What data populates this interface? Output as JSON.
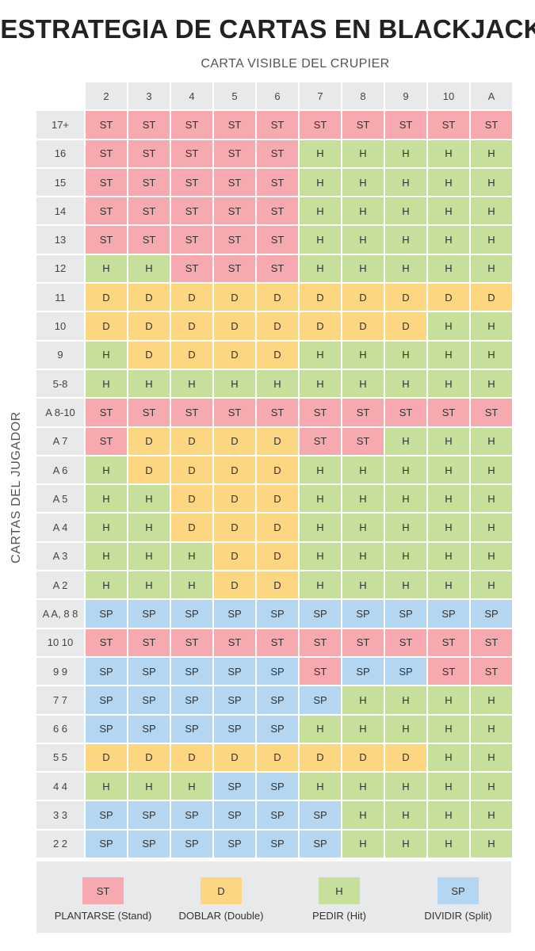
{
  "title": "ESTRATEGIA DE CARTAS EN BLACKJACK",
  "dealer_axis_label": "CARTA VISIBLE DEL CRUPIER",
  "player_axis_label": "CARTAS DEL JUGADOR",
  "dealer_cards": [
    "2",
    "3",
    "4",
    "5",
    "6",
    "7",
    "8",
    "9",
    "10",
    "A"
  ],
  "rows": [
    {
      "label": "17+",
      "actions": [
        "ST",
        "ST",
        "ST",
        "ST",
        "ST",
        "ST",
        "ST",
        "ST",
        "ST",
        "ST"
      ]
    },
    {
      "label": "16",
      "actions": [
        "ST",
        "ST",
        "ST",
        "ST",
        "ST",
        "H",
        "H",
        "H",
        "H",
        "H"
      ]
    },
    {
      "label": "15",
      "actions": [
        "ST",
        "ST",
        "ST",
        "ST",
        "ST",
        "H",
        "H",
        "H",
        "H",
        "H"
      ]
    },
    {
      "label": "14",
      "actions": [
        "ST",
        "ST",
        "ST",
        "ST",
        "ST",
        "H",
        "H",
        "H",
        "H",
        "H"
      ]
    },
    {
      "label": "13",
      "actions": [
        "ST",
        "ST",
        "ST",
        "ST",
        "ST",
        "H",
        "H",
        "H",
        "H",
        "H"
      ]
    },
    {
      "label": "12",
      "actions": [
        "H",
        "H",
        "ST",
        "ST",
        "ST",
        "H",
        "H",
        "H",
        "H",
        "H"
      ]
    },
    {
      "label": "11",
      "actions": [
        "D",
        "D",
        "D",
        "D",
        "D",
        "D",
        "D",
        "D",
        "D",
        "D"
      ]
    },
    {
      "label": "10",
      "actions": [
        "D",
        "D",
        "D",
        "D",
        "D",
        "D",
        "D",
        "D",
        "H",
        "H"
      ]
    },
    {
      "label": "9",
      "actions": [
        "H",
        "D",
        "D",
        "D",
        "D",
        "H",
        "H",
        "H",
        "H",
        "H"
      ]
    },
    {
      "label": "5-8",
      "actions": [
        "H",
        "H",
        "H",
        "H",
        "H",
        "H",
        "H",
        "H",
        "H",
        "H"
      ]
    },
    {
      "label": "A 8-10",
      "actions": [
        "ST",
        "ST",
        "ST",
        "ST",
        "ST",
        "ST",
        "ST",
        "ST",
        "ST",
        "ST"
      ]
    },
    {
      "label": "A 7",
      "actions": [
        "ST",
        "D",
        "D",
        "D",
        "D",
        "ST",
        "ST",
        "H",
        "H",
        "H"
      ]
    },
    {
      "label": "A 6",
      "actions": [
        "H",
        "D",
        "D",
        "D",
        "D",
        "H",
        "H",
        "H",
        "H",
        "H"
      ]
    },
    {
      "label": "A 5",
      "actions": [
        "H",
        "H",
        "D",
        "D",
        "D",
        "H",
        "H",
        "H",
        "H",
        "H"
      ]
    },
    {
      "label": "A 4",
      "actions": [
        "H",
        "H",
        "D",
        "D",
        "D",
        "H",
        "H",
        "H",
        "H",
        "H"
      ]
    },
    {
      "label": "A 3",
      "actions": [
        "H",
        "H",
        "H",
        "D",
        "D",
        "H",
        "H",
        "H",
        "H",
        "H"
      ]
    },
    {
      "label": "A 2",
      "actions": [
        "H",
        "H",
        "H",
        "D",
        "D",
        "H",
        "H",
        "H",
        "H",
        "H"
      ]
    },
    {
      "label": "A A, 8 8",
      "actions": [
        "SP",
        "SP",
        "SP",
        "SP",
        "SP",
        "SP",
        "SP",
        "SP",
        "SP",
        "SP"
      ]
    },
    {
      "label": "10 10",
      "actions": [
        "ST",
        "ST",
        "ST",
        "ST",
        "ST",
        "ST",
        "ST",
        "ST",
        "ST",
        "ST"
      ]
    },
    {
      "label": "9 9",
      "actions": [
        "SP",
        "SP",
        "SP",
        "SP",
        "SP",
        "ST",
        "SP",
        "SP",
        "ST",
        "ST"
      ]
    },
    {
      "label": "7 7",
      "actions": [
        "SP",
        "SP",
        "SP",
        "SP",
        "SP",
        "SP",
        "H",
        "H",
        "H",
        "H"
      ]
    },
    {
      "label": "6 6",
      "actions": [
        "SP",
        "SP",
        "SP",
        "SP",
        "SP",
        "H",
        "H",
        "H",
        "H",
        "H"
      ]
    },
    {
      "label": "5 5",
      "actions": [
        "D",
        "D",
        "D",
        "D",
        "D",
        "D",
        "D",
        "D",
        "H",
        "H"
      ]
    },
    {
      "label": "4 4",
      "actions": [
        "H",
        "H",
        "H",
        "SP",
        "SP",
        "H",
        "H",
        "H",
        "H",
        "H"
      ]
    },
    {
      "label": "3 3",
      "actions": [
        "SP",
        "SP",
        "SP",
        "SP",
        "SP",
        "SP",
        "H",
        "H",
        "H",
        "H"
      ]
    },
    {
      "label": "2 2",
      "actions": [
        "SP",
        "SP",
        "SP",
        "SP",
        "SP",
        "SP",
        "H",
        "H",
        "H",
        "H"
      ]
    }
  ],
  "legend": [
    {
      "code": "ST",
      "label": "PLANTARSE (Stand)"
    },
    {
      "code": "D",
      "label": "DOBLAR (Double)"
    },
    {
      "code": "H",
      "label": "PEDIR (Hit)"
    },
    {
      "code": "SP",
      "label": "DIVIDIR (Split)"
    }
  ],
  "colors": {
    "ST": "#f6a9ae",
    "D": "#fcd681",
    "H": "#c6e09b",
    "SP": "#b4d6f0",
    "header": "#e8e9ea"
  }
}
